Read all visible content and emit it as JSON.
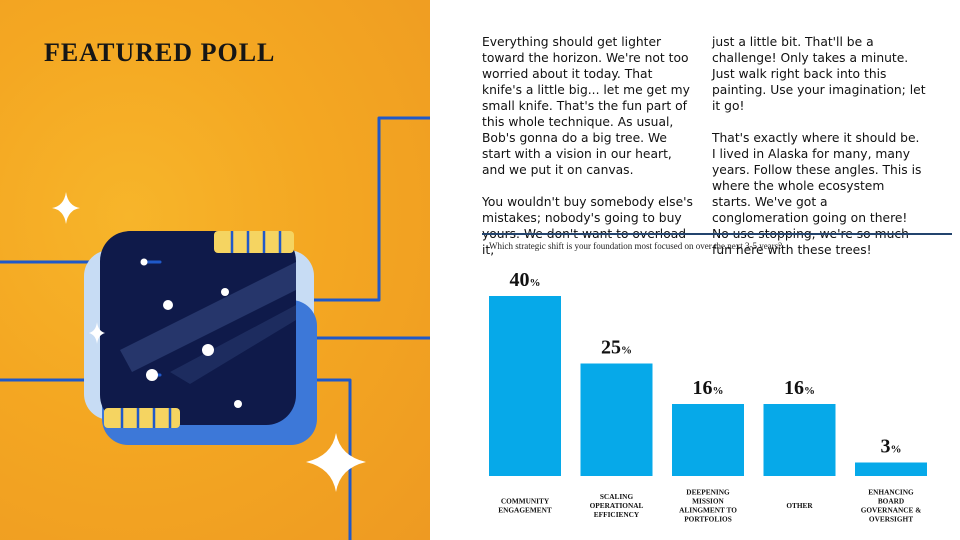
{
  "heading": "FEATURED POLL",
  "body_text": {
    "column1": [
      "Everything should get lighter toward the horizon. We're not too worried about it today. That knife's a little big... let me get my small knife. That's the fun part of this whole technique. As usual, Bob's gonna do a big tree. We start with a vision in our heart, and we put it on canvas.",
      "You wouldn't buy somebody else's mistakes; nobody's going to buy yours. We don't want to overload it,"
    ],
    "column2": [
      "just a little bit. That'll be a challenge! Only takes a minute. Just walk right back into this painting. Use your imagination; let it go!",
      "That's exactly where it should be. I lived in Alaska for many, many years. Follow these angles. This is where the whole ecosystem starts. We've got a conglomeration going on there! No use stopping, we're so much fun here with these trees!"
    ]
  },
  "colors": {
    "background_left": "#f4a722",
    "bar": "#06a9e9",
    "rule": "#23446e",
    "chip_dark": "#0f1a4a",
    "chip_blue": "#3d78d8",
    "chip_yellow": "#f5d461",
    "circuit_line": "#1f59c9"
  },
  "chart_data": {
    "type": "bar",
    "title": "Which strategic shift is your foundation most focused on over the next 3-5 years?",
    "categories": [
      [
        "COMMUNITY",
        "ENGAGEMENT"
      ],
      [
        "SCALING",
        "OPERATIONAL",
        "EFFICIENCY"
      ],
      [
        "DEEPENING",
        "MISSION",
        "ALINGMENT TO",
        "PORTFOLIOS"
      ],
      [
        "OTHER"
      ],
      [
        "ENHANCING",
        "BOARD",
        "GOVERNANCE &",
        "OVERSIGHT"
      ]
    ],
    "values": [
      40,
      25,
      16,
      16,
      3
    ],
    "value_suffix": "%",
    "ylim": [
      0,
      40
    ],
    "grid": false,
    "xlabel": "",
    "ylabel": ""
  }
}
